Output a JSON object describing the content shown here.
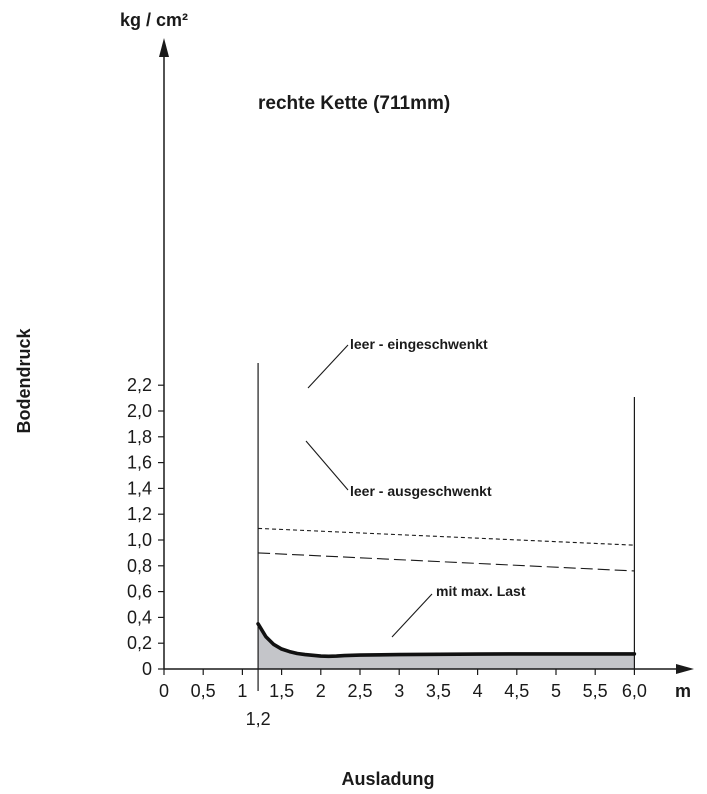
{
  "chart_data": {
    "type": "line",
    "title": "rechte Kette (711mm)",
    "ylabel": "Bodendruck",
    "xlabel": "Ausladung",
    "y_unit": "kg / cm²",
    "x_unit": "m",
    "xlim": [
      0,
      6.4
    ],
    "ylim": [
      0,
      2.4
    ],
    "x_ticks": [
      {
        "value": 0,
        "label": "0"
      },
      {
        "value": 0.5,
        "label": "0,5"
      },
      {
        "value": 1,
        "label": "1"
      },
      {
        "value": 1.5,
        "label": "1,5"
      },
      {
        "value": 2,
        "label": "2"
      },
      {
        "value": 2.5,
        "label": "2,5"
      },
      {
        "value": 3,
        "label": "3"
      },
      {
        "value": 3.5,
        "label": "3,5"
      },
      {
        "value": 4,
        "label": "4"
      },
      {
        "value": 4.5,
        "label": "4,5"
      },
      {
        "value": 5,
        "label": "5"
      },
      {
        "value": 5.5,
        "label": "5,5"
      },
      {
        "value": 6,
        "label": "6,0"
      }
    ],
    "x_extra_tick": {
      "value": 1.2,
      "label": "1,2"
    },
    "y_ticks": [
      {
        "value": 0,
        "label": "0"
      },
      {
        "value": 0.2,
        "label": "0,2"
      },
      {
        "value": 0.4,
        "label": "0,4"
      },
      {
        "value": 0.6,
        "label": "0,6"
      },
      {
        "value": 0.8,
        "label": "0,8"
      },
      {
        "value": 1.0,
        "label": "1,0"
      },
      {
        "value": 1.2,
        "label": "1,2"
      },
      {
        "value": 1.4,
        "label": "1,4"
      },
      {
        "value": 1.6,
        "label": "1,6"
      },
      {
        "value": 1.8,
        "label": "1,8"
      },
      {
        "value": 2.0,
        "label": "2,0"
      },
      {
        "value": 2.2,
        "label": "2,2"
      }
    ],
    "range_markers": [
      1.2,
      6.0
    ],
    "series": [
      {
        "name": "leer - eingeschwenkt",
        "style": "short-dash",
        "color": "#1a1a1a",
        "x": [
          1.2,
          6.0
        ],
        "y": [
          1.09,
          0.96
        ]
      },
      {
        "name": "leer - ausgeschwenkt",
        "style": "long-dash",
        "color": "#1a1a1a",
        "x": [
          1.2,
          6.0
        ],
        "y": [
          0.9,
          0.76
        ]
      },
      {
        "name": "mit max. Last",
        "style": "solid-thick",
        "color": "#111111",
        "fill": "#c4c5c9",
        "x": [
          1.2,
          1.3,
          1.4,
          1.5,
          1.6,
          1.7,
          1.8,
          1.9,
          2.0,
          2.1,
          2.2,
          2.3,
          2.5,
          3.0,
          3.5,
          4.0,
          4.5,
          5.0,
          5.5,
          6.0
        ],
        "y": [
          0.35,
          0.25,
          0.19,
          0.155,
          0.135,
          0.12,
          0.112,
          0.106,
          0.1,
          0.098,
          0.1,
          0.104,
          0.108,
          0.112,
          0.114,
          0.116,
          0.117,
          0.117,
          0.117,
          0.117
        ]
      }
    ]
  }
}
